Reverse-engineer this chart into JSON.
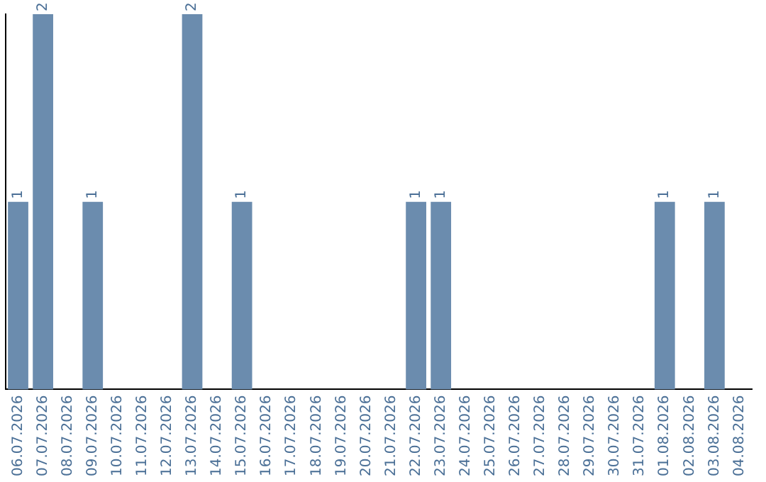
{
  "chart_data": {
    "type": "bar",
    "categories": [
      "06.07.2026",
      "07.07.2026",
      "08.07.2026",
      "09.07.2026",
      "10.07.2026",
      "11.07.2026",
      "12.07.2026",
      "13.07.2026",
      "14.07.2026",
      "15.07.2026",
      "16.07.2026",
      "17.07.2026",
      "18.07.2026",
      "19.07.2026",
      "20.07.2026",
      "21.07.2026",
      "22.07.2026",
      "23.07.2026",
      "24.07.2026",
      "25.07.2026",
      "26.07.2026",
      "27.07.2026",
      "28.07.2026",
      "29.07.2026",
      "30.07.2026",
      "31.07.2026",
      "01.08.2026",
      "02.08.2026",
      "03.08.2026",
      "04.08.2026"
    ],
    "values": [
      1,
      2,
      0,
      1,
      0,
      0,
      0,
      2,
      0,
      1,
      0,
      0,
      0,
      0,
      0,
      0,
      1,
      1,
      0,
      0,
      0,
      0,
      0,
      0,
      0,
      0,
      1,
      0,
      1,
      0
    ],
    "value_labels": [
      "1",
      "2",
      null,
      "1",
      null,
      null,
      null,
      "2",
      null,
      "1",
      null,
      null,
      null,
      null,
      null,
      null,
      "1",
      "1",
      null,
      null,
      null,
      null,
      null,
      null,
      null,
      null,
      "1",
      null,
      "1",
      null
    ],
    "color": "#6b8cae",
    "grid": false,
    "legend": false,
    "tick_labels": "x"
  }
}
